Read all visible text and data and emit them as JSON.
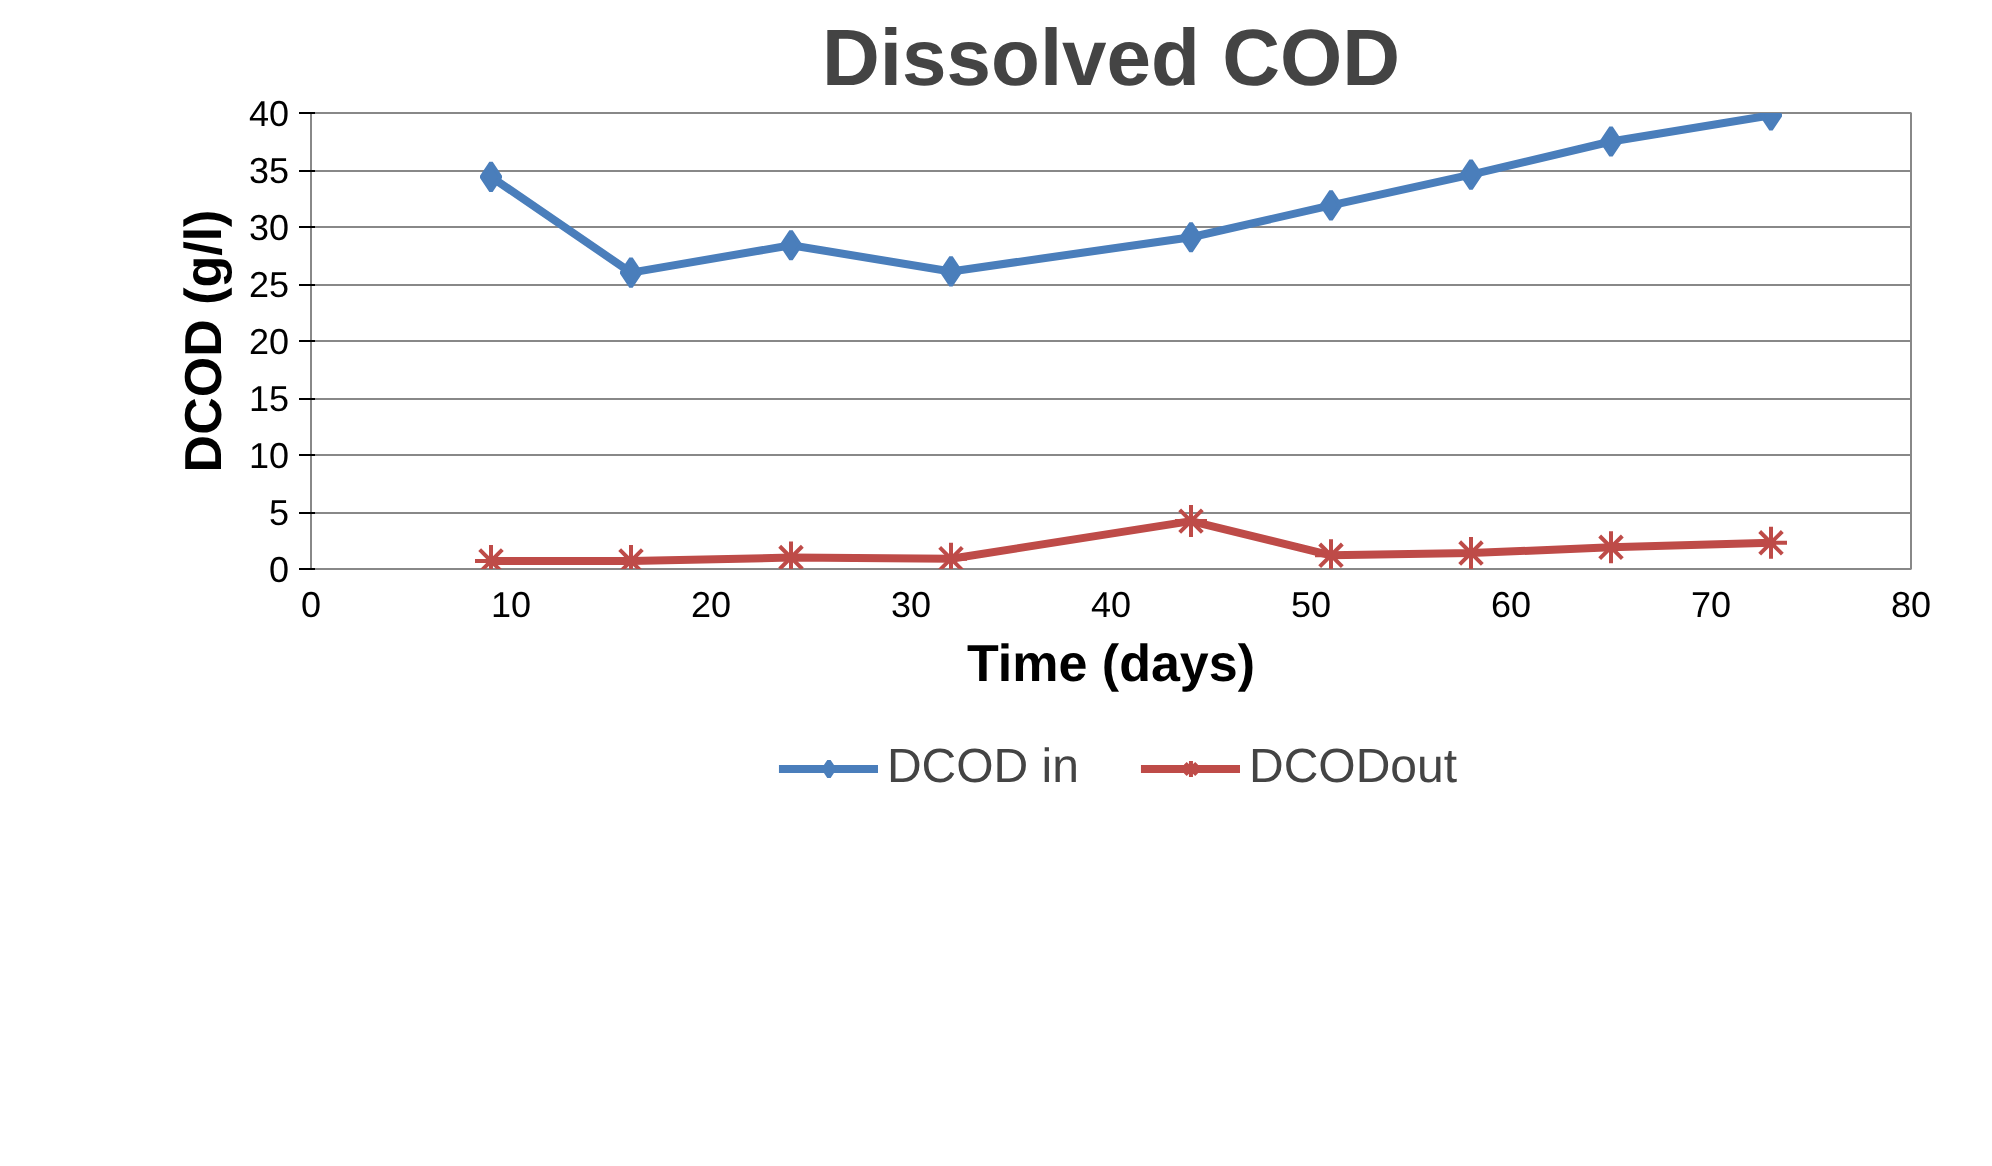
{
  "chart_data": {
    "type": "line",
    "title": "Dissolved COD",
    "xlabel": "Time (days)",
    "ylabel": "DCOD (g/l)",
    "x": [
      9,
      16,
      24,
      32,
      44,
      51,
      58,
      65,
      73
    ],
    "series": [
      {
        "name": "DCOD in",
        "color": "#4a7ebb",
        "marker": "diamond",
        "values": [
          34.4,
          26.0,
          28.4,
          26.1,
          29.1,
          31.9,
          34.6,
          37.5,
          39.8
        ]
      },
      {
        "name": "DCODout",
        "color": "#be4b48",
        "marker": "cross",
        "values": [
          0.7,
          0.7,
          1.0,
          0.9,
          4.2,
          1.2,
          1.4,
          1.9,
          2.3
        ]
      }
    ],
    "xlim": [
      0,
      80
    ],
    "xticks": [
      0,
      10,
      20,
      30,
      40,
      50,
      60,
      70,
      80
    ],
    "ylim": [
      0,
      40
    ],
    "yticks": [
      0,
      5,
      10,
      15,
      20,
      25,
      30,
      35,
      40
    ],
    "grid": "y",
    "legend": "bottom"
  }
}
